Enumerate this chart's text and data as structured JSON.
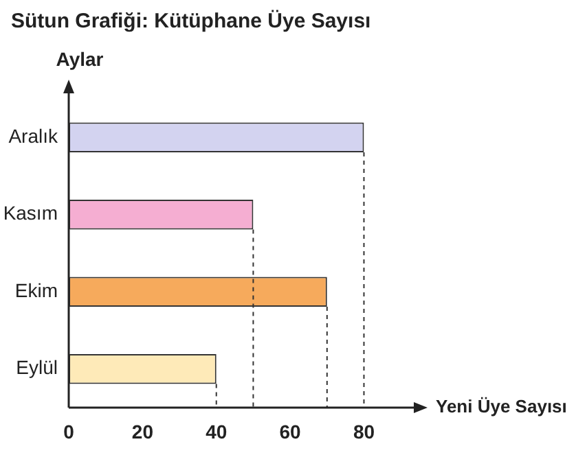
{
  "chart_data": {
    "type": "bar",
    "orientation": "horizontal",
    "title": "Sütun Grafiği: Kütüphane Üye Sayısı",
    "ylabel": "Aylar",
    "xlabel": "Yeni Üye Sayısı",
    "categories": [
      "Aralık",
      "Kasım",
      "Ekim",
      "Eylül"
    ],
    "values": [
      80,
      50,
      70,
      40
    ],
    "colors": [
      "#d3d3f0",
      "#f5aed2",
      "#f6aa5c",
      "#feeab8"
    ],
    "xlim": [
      0,
      95
    ],
    "xticks": [
      0,
      20,
      40,
      60,
      80
    ],
    "grid": false,
    "ref_lines": [
      {
        "axis": "x",
        "value": 40,
        "line_style": "dashed",
        "color": "#333333"
      },
      {
        "axis": "x",
        "value": 50,
        "line_style": "dashed",
        "color": "#333333"
      },
      {
        "axis": "x",
        "value": 70,
        "line_style": "dashed",
        "color": "#333333"
      },
      {
        "axis": "x",
        "value": 80,
        "line_style": "dashed",
        "color": "#333333"
      }
    ]
  }
}
